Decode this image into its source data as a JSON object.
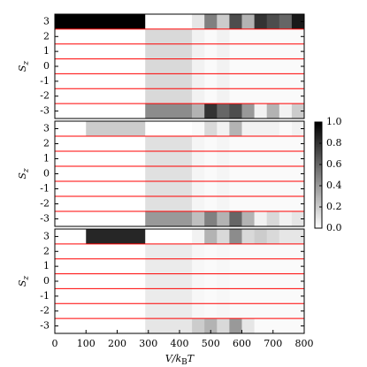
{
  "chart_data": [
    {
      "type": "heatmap",
      "bins": [
        0,
        100,
        290,
        440,
        480,
        520,
        560,
        600,
        640,
        680,
        720,
        760,
        800
      ],
      "xlim": [
        0,
        800
      ],
      "y": [
        3,
        2,
        1,
        0,
        -1,
        -2,
        -3
      ],
      "yticks": [
        3,
        2,
        1,
        0,
        -1,
        -2,
        -3
      ],
      "ylabel": {
        "main": "S",
        "sub": "z"
      },
      "row_line_color": "#ff0000",
      "cmap": "gray_r",
      "clim": [
        0,
        1
      ],
      "values": [
        [
          1,
          1,
          0,
          0.1,
          0.5,
          0.2,
          0.7,
          0.3,
          0.8,
          0.7,
          0.6,
          0.9
        ],
        [
          0,
          0,
          0.15,
          0.05,
          0.02,
          0.05,
          0.02,
          0.02,
          0.02,
          0.02,
          0.02,
          0.02
        ],
        [
          0,
          0,
          0.15,
          0.05,
          0.02,
          0.05,
          0.02,
          0.02,
          0.02,
          0.02,
          0.02,
          0.02
        ],
        [
          0,
          0,
          0.15,
          0.05,
          0.02,
          0.05,
          0.02,
          0.02,
          0.02,
          0.02,
          0.02,
          0.02
        ],
        [
          0,
          0,
          0.15,
          0.05,
          0.02,
          0.05,
          0.02,
          0.02,
          0.02,
          0.02,
          0.02,
          0.02
        ],
        [
          0,
          0,
          0.15,
          0.05,
          0.02,
          0.05,
          0.02,
          0.02,
          0.02,
          0.02,
          0.02,
          0.02
        ],
        [
          0,
          0,
          0.45,
          0.3,
          0.8,
          0.6,
          0.7,
          0.4,
          0.05,
          0.3,
          0.05,
          0.2
        ]
      ]
    },
    {
      "type": "heatmap",
      "bins": [
        0,
        100,
        290,
        440,
        480,
        520,
        560,
        600,
        640,
        680,
        720,
        760,
        800
      ],
      "xlim": [
        0,
        800
      ],
      "y": [
        3,
        2,
        1,
        0,
        -1,
        -2,
        -3
      ],
      "yticks": [
        3,
        2,
        1,
        0,
        -1,
        -2,
        -3
      ],
      "ylabel": {
        "main": "S",
        "sub": "z"
      },
      "row_line_color": "#ff0000",
      "cmap": "gray_r",
      "clim": [
        0,
        1
      ],
      "colorbar": true,
      "cticks": [
        {
          "value": 0,
          "label": "0.0"
        },
        0.2,
        0.4,
        0.6,
        0.8,
        {
          "value": 1,
          "label": "1.0"
        }
      ],
      "values": [
        [
          0,
          0.2,
          0,
          0.02,
          0.15,
          0.05,
          0.3,
          0.05,
          0.05,
          0.05,
          0.02,
          0.05
        ],
        [
          0,
          0,
          0.12,
          0.04,
          0.02,
          0.04,
          0.02,
          0.02,
          0.02,
          0.02,
          0.02,
          0.02
        ],
        [
          0,
          0,
          0.12,
          0.04,
          0.02,
          0.04,
          0.02,
          0.02,
          0.02,
          0.02,
          0.02,
          0.02
        ],
        [
          0,
          0,
          0.12,
          0.04,
          0.02,
          0.04,
          0.02,
          0.02,
          0.02,
          0.02,
          0.02,
          0.02
        ],
        [
          0,
          0,
          0.12,
          0.04,
          0.02,
          0.04,
          0.02,
          0.02,
          0.02,
          0.02,
          0.02,
          0.02
        ],
        [
          0,
          0,
          0.12,
          0.04,
          0.02,
          0.04,
          0.02,
          0.02,
          0.02,
          0.02,
          0.02,
          0.02
        ],
        [
          0,
          0,
          0.4,
          0.25,
          0.5,
          0.3,
          0.6,
          0.3,
          0.05,
          0.15,
          0.05,
          0.1
        ]
      ]
    },
    {
      "type": "heatmap",
      "bins": [
        0,
        100,
        290,
        440,
        480,
        520,
        560,
        600,
        640,
        680,
        720,
        760,
        800
      ],
      "xlim": [
        0,
        800
      ],
      "xticks": [
        0,
        100,
        200,
        300,
        400,
        500,
        600,
        700,
        800
      ],
      "xlabel": {
        "main": "V/k",
        "sub": "B",
        "end": "T"
      },
      "y": [
        3,
        2,
        1,
        0,
        -1,
        -2,
        -3
      ],
      "yticks": [
        3,
        2,
        1,
        0,
        -1,
        -2,
        -3
      ],
      "ylabel": {
        "main": "S",
        "sub": "z"
      },
      "row_line_color": "#ff0000",
      "cmap": "gray_r",
      "clim": [
        0,
        1
      ],
      "values": [
        [
          0,
          0.85,
          0,
          0.05,
          0.3,
          0.15,
          0.45,
          0.15,
          0.2,
          0.15,
          0.1,
          0.1
        ],
        [
          0,
          0,
          0.08,
          0.03,
          0.02,
          0.03,
          0.02,
          0.02,
          0.02,
          0.02,
          0.02,
          0.02
        ],
        [
          0,
          0,
          0.08,
          0.03,
          0.02,
          0.03,
          0.02,
          0.02,
          0.02,
          0.02,
          0.02,
          0.02
        ],
        [
          0,
          0,
          0.08,
          0.03,
          0.02,
          0.03,
          0.02,
          0.02,
          0.02,
          0.02,
          0.02,
          0.02
        ],
        [
          0,
          0,
          0.08,
          0.03,
          0.02,
          0.03,
          0.02,
          0.02,
          0.02,
          0.02,
          0.02,
          0.02
        ],
        [
          0,
          0,
          0.08,
          0.03,
          0.02,
          0.03,
          0.02,
          0.02,
          0.02,
          0.02,
          0.02,
          0.02
        ],
        [
          0,
          0,
          0.1,
          0.2,
          0.3,
          0.15,
          0.4,
          0.1,
          0.02,
          0.02,
          0.02,
          0.02
        ]
      ]
    }
  ]
}
